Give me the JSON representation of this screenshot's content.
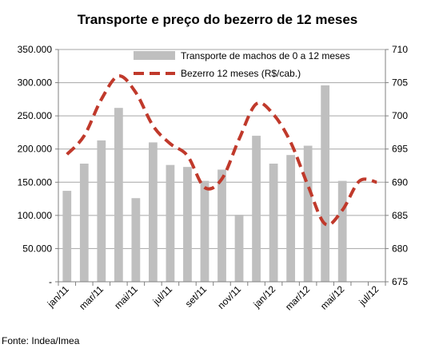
{
  "chart_data": {
    "type": "bar-line",
    "title": "Transporte e preço do bezerro de 12 meses",
    "source": "Fonte: Indea/Imea",
    "x_tick_labels": [
      "jan/11",
      "mar/11",
      "mai/11",
      "jul/11",
      "set/11",
      "nov/11",
      "jan/12",
      "mar/12",
      "mai/12",
      "jul/12"
    ],
    "left_axis": {
      "ylim": [
        0,
        350000
      ],
      "tick_labels": [
        "-",
        "50.000",
        "100.000",
        "150.000",
        "200.000",
        "250.000",
        "300.000",
        "350.000"
      ]
    },
    "right_axis": {
      "ylim": [
        675,
        710
      ],
      "tick_labels": [
        "675",
        "680",
        "685",
        "690",
        "695",
        "700",
        "705",
        "710"
      ]
    },
    "grid": "horizontal",
    "legend_placement": "top-right",
    "series": [
      {
        "name": "Transporte de machos de 0 a 12 meses",
        "type": "bar",
        "axis": "left",
        "color": "#bfbfbf",
        "values": [
          137000,
          178000,
          213000,
          262000,
          126000,
          210000,
          176000,
          173000,
          152000,
          169000,
          101000,
          220000,
          178000,
          191000,
          205000,
          296000,
          152000,
          null,
          null
        ]
      },
      {
        "name": "Bezerro 12 meses (R$/cab.)",
        "type": "line",
        "axis": "right",
        "style": "dashed",
        "color": "#c0392b",
        "values": [
          694.2,
          697,
          702.5,
          706,
          703.5,
          698.5,
          695.8,
          694,
          689.2,
          690.5,
          696.5,
          701.8,
          700.2,
          696,
          689.5,
          683.7,
          685.8,
          690.2,
          690
        ]
      }
    ]
  }
}
